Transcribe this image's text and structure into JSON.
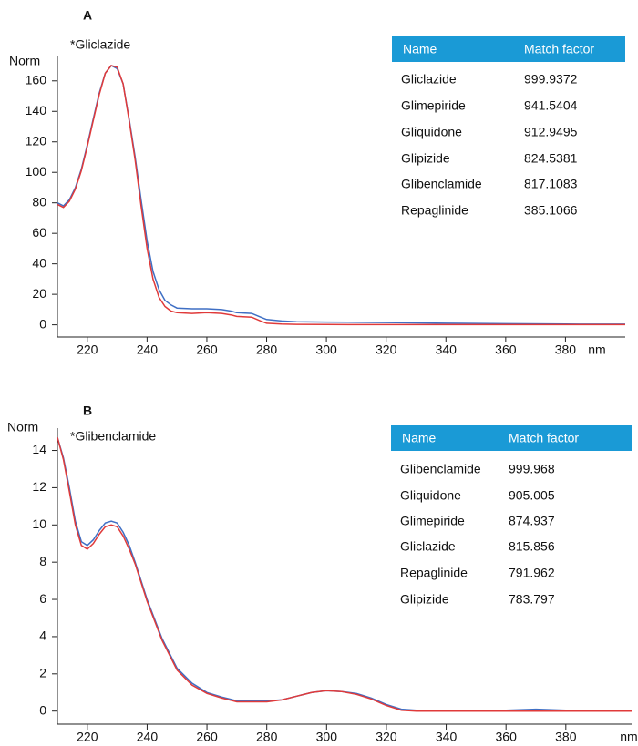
{
  "chart_data": [
    {
      "type": "line",
      "panel_label": "A",
      "annotation": "*Gliclazide",
      "ylabel": "Norm",
      "xlabel": "nm",
      "x": [
        210,
        212,
        214,
        216,
        218,
        220,
        222,
        224,
        226,
        228,
        230,
        232,
        234,
        236,
        238,
        240,
        242,
        244,
        246,
        248,
        250,
        255,
        260,
        265,
        268,
        270,
        275,
        278,
        280,
        285,
        290,
        300,
        320,
        340,
        360,
        380,
        400
      ],
      "series": [
        {
          "color": "#3f6fc4",
          "values": [
            80,
            78,
            82,
            90,
            102,
            118,
            135,
            152,
            165,
            170,
            168,
            158,
            135,
            110,
            82,
            55,
            35,
            23,
            16,
            13,
            11,
            10.5,
            10.5,
            10,
            9,
            8,
            7.5,
            5,
            3.5,
            2.5,
            2,
            1.8,
            1.5,
            1,
            0.7,
            0.5,
            0.4
          ]
        },
        {
          "color": "#e03a3a",
          "values": [
            79,
            77,
            81,
            89,
            101,
            117,
            134,
            151,
            165,
            170,
            169,
            158,
            134,
            108,
            78,
            50,
            30,
            18,
            12,
            9,
            8,
            7.5,
            8,
            7.5,
            6.5,
            5.5,
            5,
            2.5,
            1,
            0.5,
            0.3,
            0.2,
            0.1,
            0.1,
            0.1,
            0.1,
            0.1
          ]
        }
      ],
      "xlim": [
        210,
        400
      ],
      "xticks": [
        220,
        240,
        260,
        280,
        300,
        320,
        340,
        360,
        380
      ],
      "ylim": [
        -8,
        176
      ],
      "yticks": [
        0,
        20,
        40,
        60,
        80,
        100,
        120,
        140,
        160
      ],
      "table": {
        "header": [
          "Name",
          "Match factor"
        ],
        "header_color": "#1a9ad6",
        "rows": [
          [
            "Gliclazide",
            "999.9372"
          ],
          [
            "Glimepiride",
            "941.5404"
          ],
          [
            "Gliquidone",
            "912.9495"
          ],
          [
            "Glipizide",
            "824.5381"
          ],
          [
            "Glibenclamide",
            "817.1083"
          ],
          [
            "Repaglinide",
            "385.1066"
          ]
        ]
      }
    },
    {
      "type": "line",
      "panel_label": "B",
      "annotation": "*Glibenclamide",
      "ylabel": "Norm",
      "xlabel": "nm",
      "x": [
        210,
        212,
        214,
        216,
        218,
        220,
        222,
        224,
        226,
        228,
        230,
        232,
        234,
        236,
        240,
        245,
        250,
        255,
        260,
        265,
        270,
        275,
        280,
        285,
        290,
        295,
        300,
        305,
        310,
        315,
        320,
        325,
        330,
        340,
        350,
        360,
        370,
        380,
        390,
        402
      ],
      "series": [
        {
          "color": "#3f6fc4",
          "values": [
            14.7,
            13.6,
            12,
            10.2,
            9.1,
            8.9,
            9.2,
            9.7,
            10.1,
            10.2,
            10.1,
            9.6,
            8.9,
            8.0,
            6.0,
            3.9,
            2.3,
            1.5,
            1.0,
            0.75,
            0.55,
            0.55,
            0.55,
            0.6,
            0.8,
            1.0,
            1.1,
            1.05,
            0.95,
            0.7,
            0.35,
            0.1,
            0.05,
            0.05,
            0.05,
            0.05,
            0.1,
            0.05,
            0.05,
            0.05
          ]
        },
        {
          "color": "#e03a3a",
          "values": [
            14.7,
            13.5,
            11.8,
            10.0,
            8.9,
            8.7,
            9.0,
            9.5,
            9.9,
            10.0,
            9.9,
            9.4,
            8.7,
            7.9,
            5.9,
            3.8,
            2.2,
            1.4,
            0.95,
            0.7,
            0.5,
            0.5,
            0.5,
            0.6,
            0.8,
            1.0,
            1.1,
            1.05,
            0.9,
            0.65,
            0.3,
            0.05,
            0,
            0,
            0,
            0,
            0,
            0,
            0,
            0
          ]
        }
      ],
      "xlim": [
        210,
        402
      ],
      "xticks": [
        220,
        240,
        260,
        280,
        300,
        320,
        340,
        360,
        380
      ],
      "ylim": [
        -0.7,
        15.2
      ],
      "yticks": [
        0,
        2,
        4,
        6,
        8,
        10,
        12,
        14
      ],
      "table": {
        "header": [
          "Name",
          "Match factor"
        ],
        "header_color": "#1a9ad6",
        "rows": [
          [
            "Glibenclamide",
            "999.968"
          ],
          [
            "Gliquidone",
            "905.005"
          ],
          [
            "Glimepiride",
            "874.937"
          ],
          [
            "Gliclazide",
            "815.856"
          ],
          [
            "Repaglinide",
            "791.962"
          ],
          [
            "Glipizide",
            "783.797"
          ]
        ]
      }
    }
  ]
}
